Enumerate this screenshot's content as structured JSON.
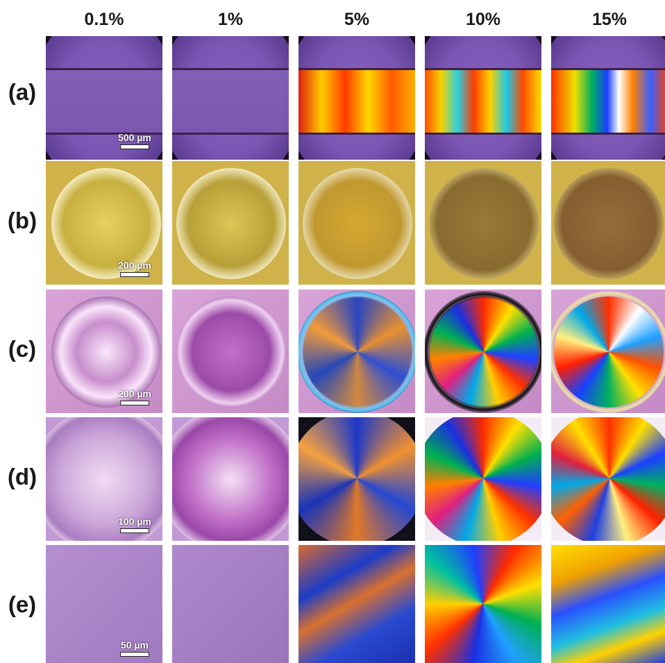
{
  "columns": [
    "0.1%",
    "1%",
    "5%",
    "10%",
    "15%"
  ],
  "rows": [
    {
      "label": "(a)",
      "scale_bar": "500 µm"
    },
    {
      "label": "(b)",
      "scale_bar": "200 µm"
    },
    {
      "label": "(c)",
      "scale_bar": "200 µm"
    },
    {
      "label": "(d)",
      "scale_bar": "100 µm"
    },
    {
      "label": "(e)",
      "scale_bar": "50 µm"
    }
  ],
  "colors": {
    "background_a": "#1a0a22",
    "purple": "#7b55b3",
    "yellow_field": "#cfb24a",
    "pink_field": "#d9a4d8",
    "lavender_field": "#c39ad6"
  }
}
